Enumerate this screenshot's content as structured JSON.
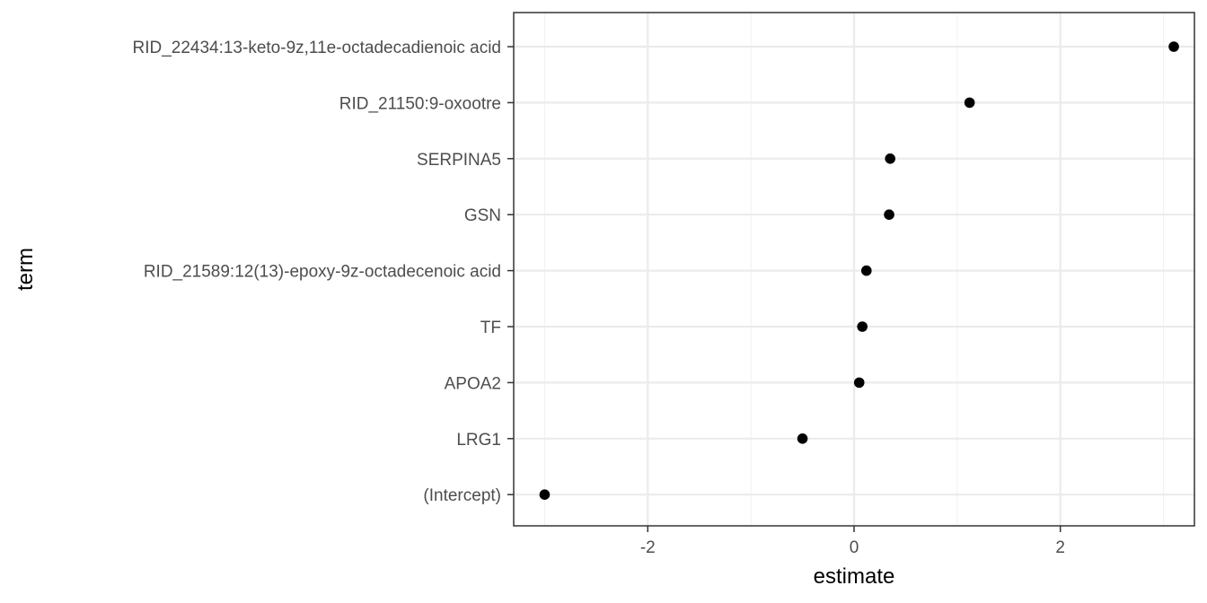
{
  "chart_data": {
    "type": "scatter",
    "title": "",
    "xlabel": "estimate",
    "ylabel": "term",
    "xlim": [
      -3.3,
      3.3
    ],
    "x_ticks": [
      -2,
      0,
      2
    ],
    "x_tick_labels": [
      "-2",
      "0",
      "2"
    ],
    "categories": [
      "RID_22434:13-keto-9z,11e-octadecadienoic acid",
      "RID_21150:9-oxootre",
      "SERPINA5",
      "GSN",
      "RID_21589:12(13)-epoxy-9z-octadecenoic acid",
      "TF",
      "APOA2",
      "LRG1",
      "(Intercept)"
    ],
    "values": [
      3.1,
      1.12,
      0.35,
      0.34,
      0.12,
      0.08,
      0.05,
      -0.5,
      -3.0
    ],
    "grid": true,
    "legend": "none",
    "colors": {
      "point": "#000000",
      "grid": "#ebebeb",
      "border": "#333333",
      "text": "#4d4d4d"
    }
  }
}
